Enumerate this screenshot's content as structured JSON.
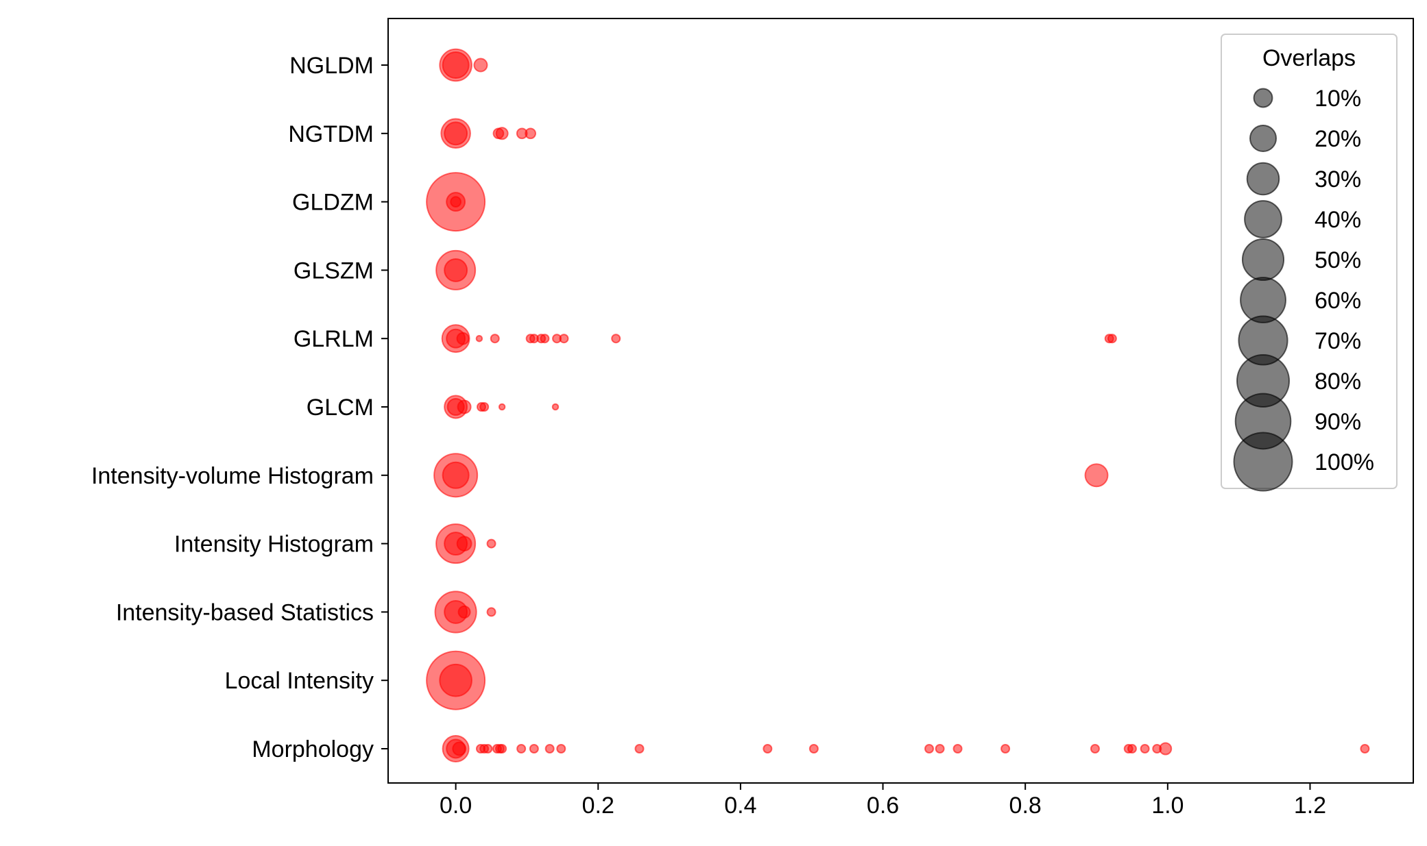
{
  "chart_data": {
    "type": "scatter",
    "title": "",
    "xlabel": "",
    "ylabel": "",
    "xlim": [
      -0.095,
      1.345
    ],
    "xticks": [
      0.0,
      0.2,
      0.4,
      0.6,
      0.8,
      1.0,
      1.2
    ],
    "xtick_labels": [
      "0.0",
      "0.2",
      "0.4",
      "0.6",
      "0.8",
      "1.0",
      "1.2"
    ],
    "categories": [
      "Morphology",
      "Local Intensity",
      "Intensity-based Statistics",
      "Intensity Histogram",
      "Intensity-volume Histogram",
      "GLCM",
      "GLRLM",
      "GLSZM",
      "GLDZM",
      "NGTDM",
      "NGLDM"
    ],
    "marker_color": "#ff0000",
    "marker_alpha": 0.5,
    "grid": false,
    "series": [
      {
        "name": "Morphology",
        "points": [
          {
            "x": 0.0,
            "overlap": 20
          },
          {
            "x": 0.0,
            "overlap": 10
          },
          {
            "x": 0.005,
            "overlap": 5
          },
          {
            "x": 0.035,
            "overlap": 2
          },
          {
            "x": 0.04,
            "overlap": 2
          },
          {
            "x": 0.045,
            "overlap": 2
          },
          {
            "x": 0.058,
            "overlap": 2
          },
          {
            "x": 0.062,
            "overlap": 2
          },
          {
            "x": 0.065,
            "overlap": 2
          },
          {
            "x": 0.092,
            "overlap": 2
          },
          {
            "x": 0.11,
            "overlap": 2
          },
          {
            "x": 0.132,
            "overlap": 2
          },
          {
            "x": 0.148,
            "overlap": 2
          },
          {
            "x": 0.258,
            "overlap": 2
          },
          {
            "x": 0.438,
            "overlap": 2
          },
          {
            "x": 0.503,
            "overlap": 2
          },
          {
            "x": 0.665,
            "overlap": 2
          },
          {
            "x": 0.68,
            "overlap": 2
          },
          {
            "x": 0.705,
            "overlap": 2
          },
          {
            "x": 0.772,
            "overlap": 2
          },
          {
            "x": 0.898,
            "overlap": 2
          },
          {
            "x": 0.945,
            "overlap": 2
          },
          {
            "x": 0.95,
            "overlap": 2
          },
          {
            "x": 0.968,
            "overlap": 2
          },
          {
            "x": 0.985,
            "overlap": 2
          },
          {
            "x": 0.997,
            "overlap": 4
          },
          {
            "x": 1.277,
            "overlap": 2
          }
        ]
      },
      {
        "name": "Local Intensity",
        "points": [
          {
            "x": 0.0,
            "overlap": 100
          },
          {
            "x": 0.0,
            "overlap": 30
          }
        ]
      },
      {
        "name": "Intensity-based Statistics",
        "points": [
          {
            "x": 0.0,
            "overlap": 50
          },
          {
            "x": 0.0,
            "overlap": 15
          },
          {
            "x": 0.012,
            "overlap": 4
          },
          {
            "x": 0.05,
            "overlap": 2
          }
        ]
      },
      {
        "name": "Intensity Histogram",
        "points": [
          {
            "x": 0.0,
            "overlap": 45
          },
          {
            "x": 0.0,
            "overlap": 15
          },
          {
            "x": 0.012,
            "overlap": 6
          },
          {
            "x": 0.05,
            "overlap": 2
          }
        ]
      },
      {
        "name": "Intensity-volume Histogram",
        "points": [
          {
            "x": 0.0,
            "overlap": 55
          },
          {
            "x": 0.0,
            "overlap": 20
          },
          {
            "x": 0.9,
            "overlap": 15
          }
        ]
      },
      {
        "name": "GLCM",
        "points": [
          {
            "x": 0.0,
            "overlap": 15
          },
          {
            "x": 0.0,
            "overlap": 8
          },
          {
            "x": 0.012,
            "overlap": 5
          },
          {
            "x": 0.036,
            "overlap": 2
          },
          {
            "x": 0.04,
            "overlap": 2
          },
          {
            "x": 0.065,
            "overlap": 1
          },
          {
            "x": 0.14,
            "overlap": 1
          }
        ]
      },
      {
        "name": "GLRLM",
        "points": [
          {
            "x": 0.0,
            "overlap": 22
          },
          {
            "x": 0.0,
            "overlap": 10
          },
          {
            "x": 0.01,
            "overlap": 4
          },
          {
            "x": 0.033,
            "overlap": 1
          },
          {
            "x": 0.055,
            "overlap": 2
          },
          {
            "x": 0.105,
            "overlap": 2
          },
          {
            "x": 0.11,
            "overlap": 2
          },
          {
            "x": 0.12,
            "overlap": 2
          },
          {
            "x": 0.125,
            "overlap": 2
          },
          {
            "x": 0.142,
            "overlap": 2
          },
          {
            "x": 0.152,
            "overlap": 2
          },
          {
            "x": 0.225,
            "overlap": 2
          },
          {
            "x": 0.918,
            "overlap": 2
          },
          {
            "x": 0.922,
            "overlap": 2
          }
        ]
      },
      {
        "name": "GLSZM",
        "points": [
          {
            "x": 0.0,
            "overlap": 45
          },
          {
            "x": 0.0,
            "overlap": 15
          }
        ]
      },
      {
        "name": "GLDZM",
        "points": [
          {
            "x": 0.0,
            "overlap": 100
          },
          {
            "x": 0.0,
            "overlap": 10
          },
          {
            "x": 0.0,
            "overlap": 3
          }
        ]
      },
      {
        "name": "NGTDM",
        "points": [
          {
            "x": 0.0,
            "overlap": 25
          },
          {
            "x": 0.0,
            "overlap": 15
          },
          {
            "x": 0.06,
            "overlap": 3
          },
          {
            "x": 0.065,
            "overlap": 4
          },
          {
            "x": 0.093,
            "overlap": 3
          },
          {
            "x": 0.105,
            "overlap": 3
          }
        ]
      },
      {
        "name": "NGLDM",
        "points": [
          {
            "x": 0.0,
            "overlap": 30
          },
          {
            "x": 0.0,
            "overlap": 20
          },
          {
            "x": 0.035,
            "overlap": 5
          }
        ]
      }
    ],
    "legend": {
      "title": "Overlaps",
      "position": "top-right",
      "entries": [
        {
          "label": "10%",
          "overlap": 10
        },
        {
          "label": "20%",
          "overlap": 20
        },
        {
          "label": "30%",
          "overlap": 30
        },
        {
          "label": "40%",
          "overlap": 40
        },
        {
          "label": "50%",
          "overlap": 50
        },
        {
          "label": "60%",
          "overlap": 60
        },
        {
          "label": "70%",
          "overlap": 70
        },
        {
          "label": "80%",
          "overlap": 80
        },
        {
          "label": "90%",
          "overlap": 90
        },
        {
          "label": "100%",
          "overlap": 100
        }
      ],
      "marker_color": "#000000"
    }
  }
}
